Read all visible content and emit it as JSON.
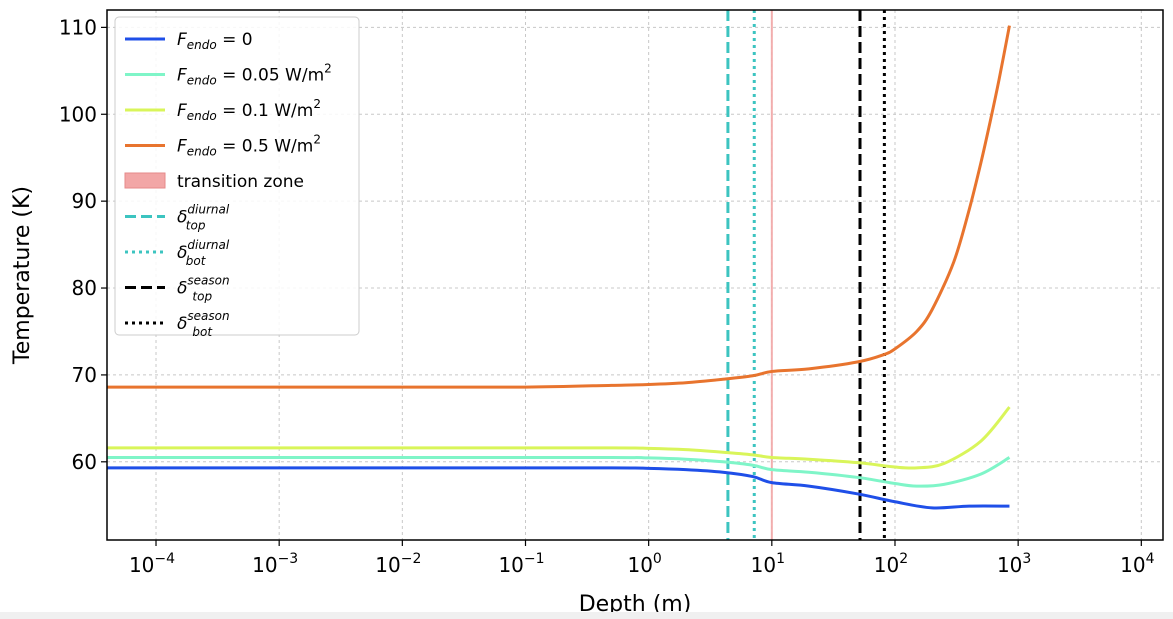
{
  "chart_data": {
    "type": "line",
    "xlabel": "Depth (m)",
    "ylabel": "Temperature (K)",
    "xscale": "log",
    "xlim": [
      4e-05,
      15000
    ],
    "ylim": [
      51,
      112
    ],
    "grid": true,
    "legend_position": "top-left",
    "x_ticks": [
      {
        "value": 0.0001,
        "base": "10",
        "exp": "−4"
      },
      {
        "value": 0.001,
        "base": "10",
        "exp": "−3"
      },
      {
        "value": 0.01,
        "base": "10",
        "exp": "−2"
      },
      {
        "value": 0.1,
        "base": "10",
        "exp": "−1"
      },
      {
        "value": 1,
        "base": "10",
        "exp": "0"
      },
      {
        "value": 10,
        "base": "10",
        "exp": "1"
      },
      {
        "value": 100,
        "base": "10",
        "exp": "2"
      },
      {
        "value": 1000,
        "base": "10",
        "exp": "3"
      },
      {
        "value": 10000,
        "base": "10",
        "exp": "4"
      }
    ],
    "y_ticks": [
      60,
      70,
      80,
      90,
      100,
      110
    ],
    "series": [
      {
        "name": "F_endo = 0",
        "label_main": "F",
        "label_sub": "endo",
        "label_rest": " = 0",
        "label_sup": "",
        "color": "#1f4fe8",
        "x": [
          4e-05,
          0.01,
          0.5,
          1,
          2,
          4,
          7,
          10,
          20,
          50,
          100,
          200,
          400,
          850
        ],
        "y": [
          59.3,
          59.3,
          59.3,
          59.25,
          59.1,
          58.8,
          58.3,
          57.6,
          57.2,
          56.3,
          55.4,
          54.7,
          54.9,
          54.9
        ]
      },
      {
        "name": "F_endo = 0.05 W/m^2",
        "label_main": "F",
        "label_sub": "endo",
        "label_rest": " = 0.05 W/m",
        "label_sup": "2",
        "color": "#7ff5c8",
        "x": [
          4e-05,
          0.01,
          0.5,
          1,
          2,
          4,
          7,
          10,
          20,
          50,
          100,
          150,
          250,
          500,
          850
        ],
        "y": [
          60.5,
          60.5,
          60.5,
          60.45,
          60.3,
          60.0,
          59.6,
          59.1,
          58.8,
          58.2,
          57.5,
          57.2,
          57.4,
          58.6,
          60.5
        ]
      },
      {
        "name": "F_endo = 0.1 W/m^2",
        "label_main": "F",
        "label_sub": "endo",
        "label_rest": " = 0.1 W/m",
        "label_sup": "2",
        "color": "#d9f55a",
        "x": [
          4e-05,
          0.01,
          0.5,
          1,
          2,
          4,
          7,
          10,
          20,
          50,
          100,
          150,
          250,
          500,
          850
        ],
        "y": [
          61.6,
          61.6,
          61.6,
          61.55,
          61.4,
          61.1,
          60.8,
          60.5,
          60.3,
          59.9,
          59.4,
          59.3,
          59.8,
          62.4,
          66.3
        ]
      },
      {
        "name": "F_endo = 0.5 W/m^2",
        "label_main": "F",
        "label_sub": "endo",
        "label_rest": " = 0.5 W/m",
        "label_sup": "2",
        "color": "#e8742e",
        "x": [
          4e-05,
          0.01,
          0.1,
          0.5,
          1,
          2,
          4,
          7,
          10,
          20,
          50,
          80,
          100,
          150,
          200,
          300,
          400,
          500,
          600,
          700,
          850
        ],
        "y": [
          68.6,
          68.6,
          68.6,
          68.8,
          68.9,
          69.1,
          69.5,
          69.9,
          70.4,
          70.7,
          71.5,
          72.3,
          73.0,
          75.0,
          77.5,
          83.0,
          89.0,
          94.5,
          99.5,
          104.0,
          110.2
        ]
      }
    ],
    "transition_zone": {
      "name": "transition zone",
      "x": 10,
      "color": "#f2a6a6"
    },
    "vlines": [
      {
        "name": "delta_top^diurnal",
        "label_main": "δ",
        "label_sub": "top",
        "label_sup": "diurnal",
        "x": 4.4,
        "color": "#3cc4c0",
        "style": "dashed"
      },
      {
        "name": "delta_bot^diurnal",
        "label_main": "δ",
        "label_sub": "bot",
        "label_sup": "diurnal",
        "x": 7.2,
        "color": "#3cc4c0",
        "style": "dotted"
      },
      {
        "name": "delta_top^season",
        "label_main": "δ",
        "label_sub": "top",
        "label_sup": "season",
        "x": 52,
        "color": "#000000",
        "style": "dashed"
      },
      {
        "name": "delta_bot^season",
        "label_main": "δ",
        "label_sub": "bot",
        "label_sup": "season",
        "x": 82,
        "color": "#000000",
        "style": "dotted"
      }
    ]
  }
}
